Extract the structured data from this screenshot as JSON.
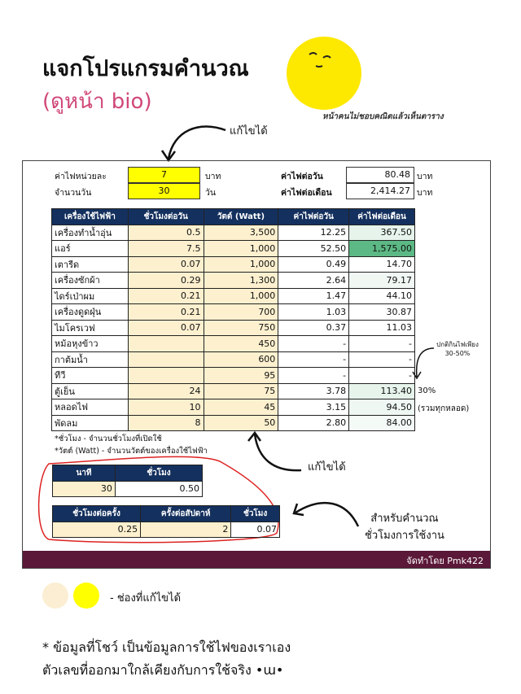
{
  "header": {
    "title": "แจกโปรแกรมคำนวณ",
    "subtitle": "(ดูหน้า bio)",
    "caption": "หน้าคนไม่ชอบคณิตแล้วเห็นตาราง"
  },
  "annotations": {
    "editable_top": "แก้ไขได้",
    "editable_mid": "แก้ไขได้",
    "normal_note": "ปกติกินไฟเพียง",
    "normal_range": "30-50%",
    "calc_line1": "สำหรับคำนวณ",
    "calc_line2": "ชั่วโมงการใช้งาน"
  },
  "inputs": {
    "rate_label": "ค่าไฟหน่วยละ",
    "rate_value": "7",
    "rate_unit": "บาท",
    "days_label": "จำนวนวัน",
    "days_value": "30",
    "days_unit": "วัน",
    "daily_label": "ค่าไฟต่อวัน",
    "daily_value": "80.48",
    "daily_unit": "บาท",
    "monthly_label": "ค่าไฟต่อเดือน",
    "monthly_value": "2,414.27",
    "monthly_unit": "บาท"
  },
  "table": {
    "headers": [
      "เครื่องใช้ไฟฟ้า",
      "ชั่วโมงต่อวัน",
      "วัตต์ (Watt)",
      "ค่าไฟต่อวัน",
      "ค่าไฟต่อเดือน"
    ],
    "rows": [
      [
        "เครื่องทำน้ำอุ่น",
        "0.5",
        "3,500",
        "12.25",
        "367.50",
        ""
      ],
      [
        "แอร์",
        "7.5",
        "1,000",
        "52.50",
        "1,575.00",
        ""
      ],
      [
        "เตารีด",
        "0.07",
        "1,000",
        "0.49",
        "14.70",
        ""
      ],
      [
        "เครื่องซักผ้า",
        "0.29",
        "1,300",
        "2.64",
        "79.17",
        ""
      ],
      [
        "ไดร์เป่าผม",
        "0.21",
        "1,000",
        "1.47",
        "44.10",
        ""
      ],
      [
        "เครื่องดูดฝุ่น",
        "0.21",
        "700",
        "1.03",
        "30.87",
        ""
      ],
      [
        "ไมโครเวฟ",
        "0.07",
        "750",
        "0.37",
        "11.03",
        ""
      ],
      [
        "หม้อหุงข้าว",
        "",
        "450",
        "-",
        "-",
        ""
      ],
      [
        "กาต้มน้ำ",
        "",
        "600",
        "-",
        "-",
        ""
      ],
      [
        "ทีวี",
        "",
        "95",
        "-",
        "-",
        ""
      ],
      [
        "ตู้เย็น",
        "24",
        "75",
        "3.78",
        "113.40",
        "30%"
      ],
      [
        "หลอดไฟ",
        "10",
        "45",
        "3.15",
        "94.50",
        "(รวมทุกหลอด)"
      ],
      [
        "พัดลม",
        "8",
        "50",
        "2.80",
        "84.00",
        ""
      ]
    ]
  },
  "notes": [
    "*ชั่วโมง - จำนวนชั่วโมงที่เปิดใช้",
    "*วัตต์ (Watt) - จำนวนวัตต์ของเครื่องใช้ไฟฟ้า"
  ],
  "calc1": {
    "headers": [
      "นาที",
      "ชั่วโมง"
    ],
    "values": [
      "30",
      "0.50"
    ]
  },
  "calc2": {
    "headers": [
      "ชั่วโมงต่อครั้ง",
      "ครั้งต่อสัปดาห์",
      "ชั่วโมง"
    ],
    "values": [
      "0.25",
      "2",
      "0.07"
    ]
  },
  "footer": "จัดทำโดย Pmk422",
  "legend": {
    "label": "- ช่องที่แก้ไขได้",
    "colors": [
      "#fbeed2",
      "#ffff00"
    ]
  },
  "disclaimer": [
    "* ข้อมูลที่โชว์ เป็นข้อมูลการใช้ไฟของเราเอง",
    "ตัวเลขที่ออกมาใกล้เคียงกับการใช้จริง •ɯ•"
  ],
  "colors": {
    "header_bg": "#14305e",
    "footer_bg": "#5b1838",
    "editable": "#fdf0cf",
    "input": "#ffff00",
    "highlight": "#5cb884"
  }
}
